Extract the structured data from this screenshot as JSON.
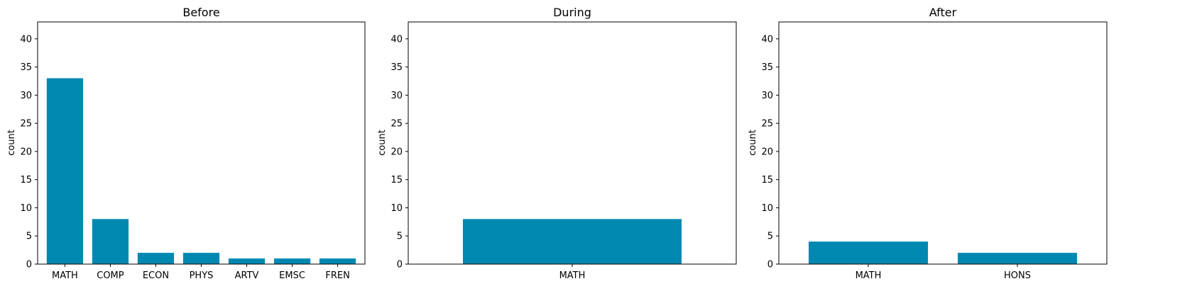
{
  "colors": {
    "bar": "#0088b0",
    "axis": "#000000",
    "background": "#ffffff"
  },
  "chart_data": [
    {
      "type": "bar",
      "title": "Before",
      "xlabel": "",
      "ylabel": "count",
      "categories": [
        "MATH",
        "COMP",
        "ECON",
        "PHYS",
        "ARTV",
        "EMSC",
        "FREN"
      ],
      "values": [
        33,
        8,
        2,
        2,
        1,
        1,
        1
      ],
      "ylim": [
        0,
        43
      ],
      "yticks": [
        0,
        5,
        10,
        15,
        20,
        25,
        30,
        35,
        40
      ],
      "grid": false
    },
    {
      "type": "bar",
      "title": "During",
      "xlabel": "",
      "ylabel": "count",
      "categories": [
        "MATH"
      ],
      "values": [
        8
      ],
      "ylim": [
        0,
        43
      ],
      "yticks": [
        0,
        5,
        10,
        15,
        20,
        25,
        30,
        35,
        40
      ],
      "grid": false
    },
    {
      "type": "bar",
      "title": "After",
      "xlabel": "",
      "ylabel": "count",
      "categories": [
        "MATH",
        "HONS"
      ],
      "values": [
        4,
        2
      ],
      "ylim": [
        0,
        43
      ],
      "yticks": [
        0,
        5,
        10,
        15,
        20,
        25,
        30,
        35,
        40
      ],
      "grid": false
    }
  ]
}
